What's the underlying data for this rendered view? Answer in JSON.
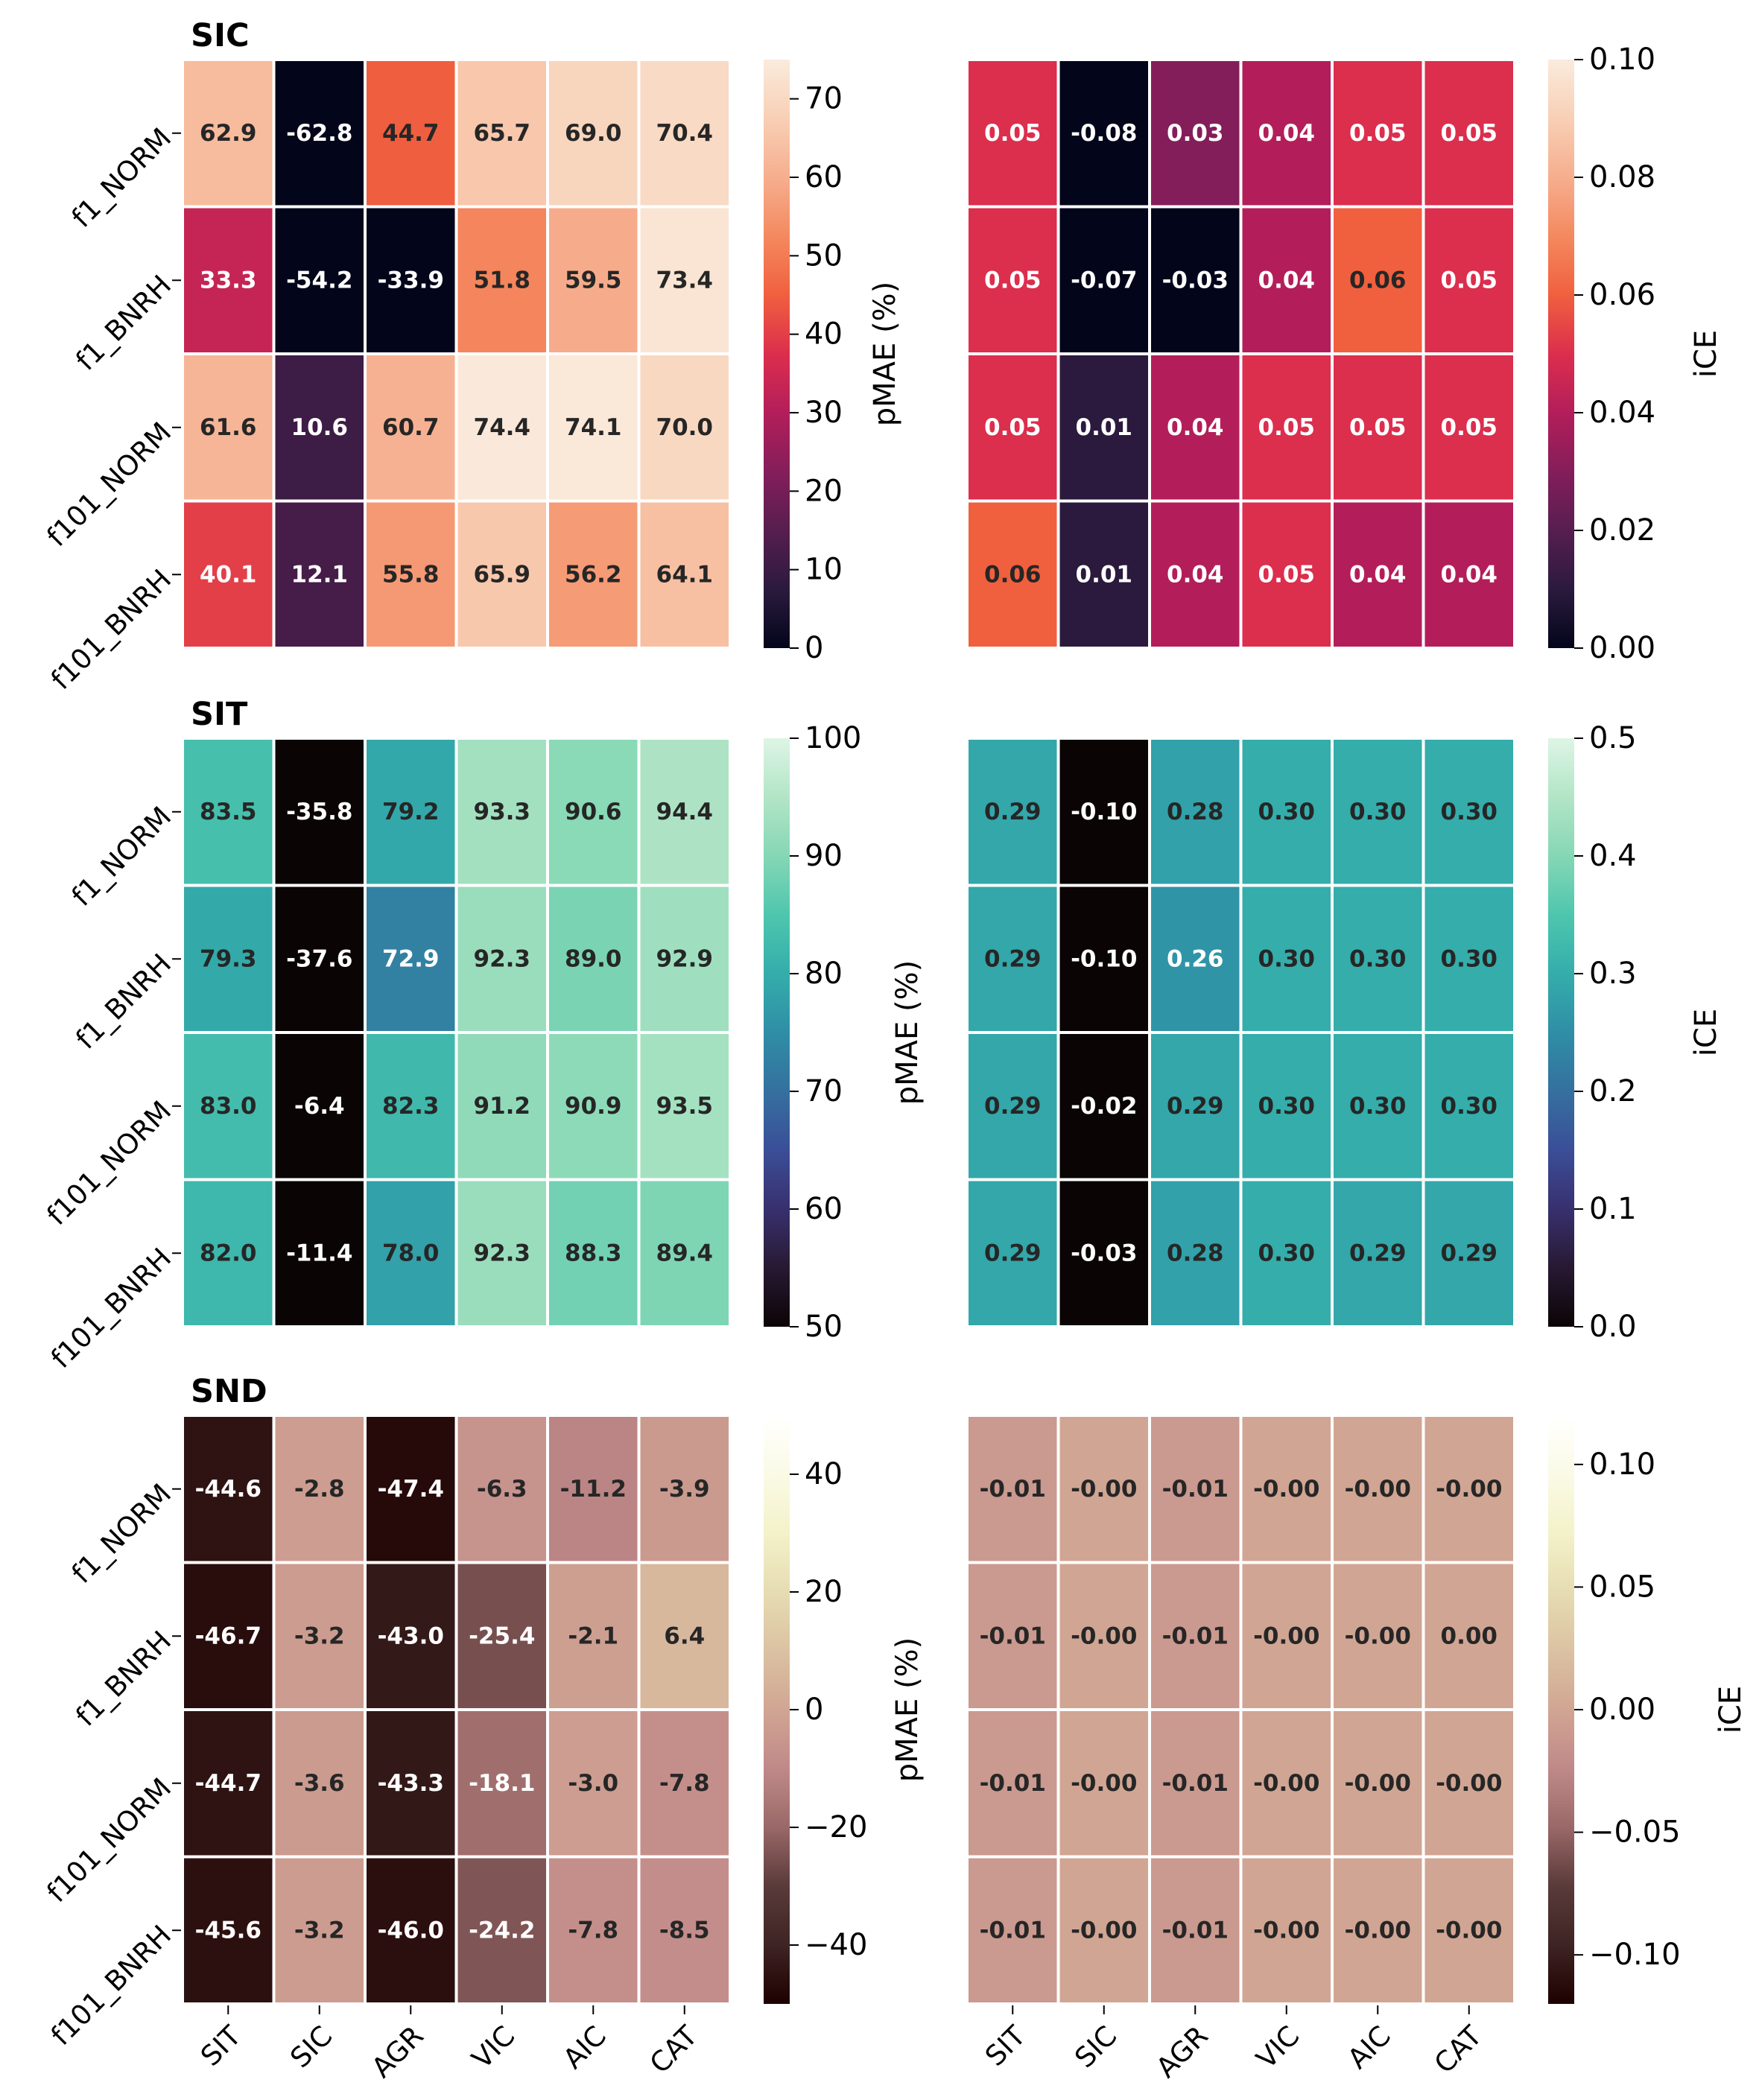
{
  "chart_data": {
    "type": "heatmap",
    "rows": [
      "f1_NORM",
      "f1_BNRH",
      "f101_NORM",
      "f101_BNRH"
    ],
    "columns": [
      "SIT",
      "SIC",
      "AGR",
      "VIC",
      "AIC",
      "CAT"
    ],
    "panels": [
      {
        "title": "SIC",
        "colormap": "rocket",
        "pmae": {
          "label": "pMAE (%)",
          "vmin": 0,
          "vmax": 75,
          "ticks": [
            0,
            10,
            20,
            30,
            40,
            50,
            60,
            70
          ],
          "tick_labels": [
            "0",
            "10",
            "20",
            "30",
            "40",
            "50",
            "60",
            "70"
          ],
          "values": [
            [
              62.9,
              -62.8,
              44.7,
              65.7,
              69.0,
              70.4
            ],
            [
              33.3,
              -54.2,
              -33.9,
              51.8,
              59.5,
              73.4
            ],
            [
              61.6,
              10.6,
              60.7,
              74.4,
              74.1,
              70.0
            ],
            [
              40.1,
              12.1,
              55.8,
              65.9,
              56.2,
              64.1
            ]
          ],
          "labels": [
            [
              "62.9",
              "-62.8",
              "44.7",
              "65.7",
              "69.0",
              "70.4"
            ],
            [
              "33.3",
              "-54.2",
              "-33.9",
              "51.8",
              "59.5",
              "73.4"
            ],
            [
              "61.6",
              "10.6",
              "60.7",
              "74.4",
              "74.1",
              "70.0"
            ],
            [
              "40.1",
              "12.1",
              "55.8",
              "65.9",
              "56.2",
              "64.1"
            ]
          ]
        },
        "ice": {
          "label": "iCE",
          "vmin": 0,
          "vmax": 0.1,
          "ticks": [
            0,
            0.02,
            0.04,
            0.06,
            0.08,
            0.1
          ],
          "tick_labels": [
            "0.00",
            "0.02",
            "0.04",
            "0.06",
            "0.08",
            "0.10"
          ],
          "values": [
            [
              0.05,
              -0.08,
              0.03,
              0.04,
              0.05,
              0.05
            ],
            [
              0.05,
              -0.07,
              -0.03,
              0.04,
              0.06,
              0.05
            ],
            [
              0.05,
              0.01,
              0.04,
              0.05,
              0.05,
              0.05
            ],
            [
              0.06,
              0.01,
              0.04,
              0.05,
              0.04,
              0.04
            ]
          ],
          "labels": [
            [
              "0.05",
              "-0.08",
              "0.03",
              "0.04",
              "0.05",
              "0.05"
            ],
            [
              "0.05",
              "-0.07",
              "-0.03",
              "0.04",
              "0.06",
              "0.05"
            ],
            [
              "0.05",
              "0.01",
              "0.04",
              "0.05",
              "0.05",
              "0.05"
            ],
            [
              "0.06",
              "0.01",
              "0.04",
              "0.05",
              "0.04",
              "0.04"
            ]
          ]
        }
      },
      {
        "title": "SIT",
        "colormap": "mako",
        "pmae": {
          "label": "pMAE (%)",
          "vmin": 50,
          "vmax": 100,
          "ticks": [
            50,
            60,
            70,
            80,
            90,
            100
          ],
          "tick_labels": [
            "50",
            "60",
            "70",
            "80",
            "90",
            "100"
          ],
          "values": [
            [
              83.5,
              -35.8,
              79.2,
              93.3,
              90.6,
              94.4
            ],
            [
              79.3,
              -37.6,
              72.9,
              92.3,
              89.0,
              92.9
            ],
            [
              83.0,
              -6.4,
              82.3,
              91.2,
              90.9,
              93.5
            ],
            [
              82.0,
              -11.4,
              78.0,
              92.3,
              88.3,
              89.4
            ]
          ],
          "labels": [
            [
              "83.5",
              "-35.8",
              "79.2",
              "93.3",
              "90.6",
              "94.4"
            ],
            [
              "79.3",
              "-37.6",
              "72.9",
              "92.3",
              "89.0",
              "92.9"
            ],
            [
              "83.0",
              "-6.4",
              "82.3",
              "91.2",
              "90.9",
              "93.5"
            ],
            [
              "82.0",
              "-11.4",
              "78.0",
              "92.3",
              "88.3",
              "89.4"
            ]
          ]
        },
        "ice": {
          "label": "iCE",
          "vmin": 0,
          "vmax": 0.5,
          "ticks": [
            0,
            0.1,
            0.2,
            0.3,
            0.4,
            0.5
          ],
          "tick_labels": [
            "0.0",
            "0.1",
            "0.2",
            "0.3",
            "0.4",
            "0.5"
          ],
          "values": [
            [
              0.29,
              -0.1,
              0.28,
              0.3,
              0.3,
              0.3
            ],
            [
              0.29,
              -0.1,
              0.26,
              0.3,
              0.3,
              0.3
            ],
            [
              0.29,
              -0.02,
              0.29,
              0.3,
              0.3,
              0.3
            ],
            [
              0.29,
              -0.03,
              0.28,
              0.3,
              0.29,
              0.29
            ]
          ],
          "labels": [
            [
              "0.29",
              "-0.10",
              "0.28",
              "0.30",
              "0.30",
              "0.30"
            ],
            [
              "0.29",
              "-0.10",
              "0.26",
              "0.30",
              "0.30",
              "0.30"
            ],
            [
              "0.29",
              "-0.02",
              "0.29",
              "0.30",
              "0.30",
              "0.30"
            ],
            [
              "0.29",
              "-0.03",
              "0.28",
              "0.30",
              "0.29",
              "0.29"
            ]
          ]
        }
      },
      {
        "title": "SND",
        "colormap": "pink",
        "pmae": {
          "label": "pMAE (%)",
          "vmin": -50,
          "vmax": 50,
          "ticks": [
            -40,
            -20,
            0,
            20,
            40
          ],
          "tick_labels": [
            "−40",
            "−20",
            "0",
            "20",
            "40"
          ],
          "values": [
            [
              -44.6,
              -2.8,
              -47.4,
              -6.3,
              -11.2,
              -3.9
            ],
            [
              -46.7,
              -3.2,
              -43.0,
              -25.4,
              -2.1,
              6.4
            ],
            [
              -44.7,
              -3.6,
              -43.3,
              -18.1,
              -3.0,
              -7.8
            ],
            [
              -45.6,
              -3.2,
              -46.0,
              -24.2,
              -7.8,
              -8.5
            ]
          ],
          "labels": [
            [
              "-44.6",
              "-2.8",
              "-47.4",
              "-6.3",
              "-11.2",
              "-3.9"
            ],
            [
              "-46.7",
              "-3.2",
              "-43.0",
              "-25.4",
              "-2.1",
              "6.4"
            ],
            [
              "-44.7",
              "-3.6",
              "-43.3",
              "-18.1",
              "-3.0",
              "-7.8"
            ],
            [
              "-45.6",
              "-3.2",
              "-46.0",
              "-24.2",
              "-7.8",
              "-8.5"
            ]
          ]
        },
        "ice": {
          "label": "iCE",
          "vmin": -0.12,
          "vmax": 0.12,
          "ticks": [
            -0.1,
            -0.05,
            0,
            0.05,
            0.1
          ],
          "tick_labels": [
            "−0.10",
            "−0.05",
            "0.00",
            "0.05",
            "0.10"
          ],
          "values": [
            [
              -0.01,
              -0.0,
              -0.01,
              -0.0,
              -0.0,
              -0.0
            ],
            [
              -0.01,
              -0.0,
              -0.01,
              -0.0,
              -0.0,
              0.0
            ],
            [
              -0.01,
              -0.0,
              -0.01,
              -0.0,
              -0.0,
              -0.0
            ],
            [
              -0.01,
              -0.0,
              -0.01,
              -0.0,
              -0.0,
              -0.0
            ]
          ],
          "labels": [
            [
              "-0.01",
              "-0.00",
              "-0.01",
              "-0.00",
              "-0.00",
              "-0.00"
            ],
            [
              "-0.01",
              "-0.00",
              "-0.01",
              "-0.00",
              "-0.00",
              "0.00"
            ],
            [
              "-0.01",
              "-0.00",
              "-0.01",
              "-0.00",
              "-0.00",
              "-0.00"
            ],
            [
              "-0.01",
              "-0.00",
              "-0.01",
              "-0.00",
              "-0.00",
              "-0.00"
            ]
          ]
        }
      }
    ]
  }
}
